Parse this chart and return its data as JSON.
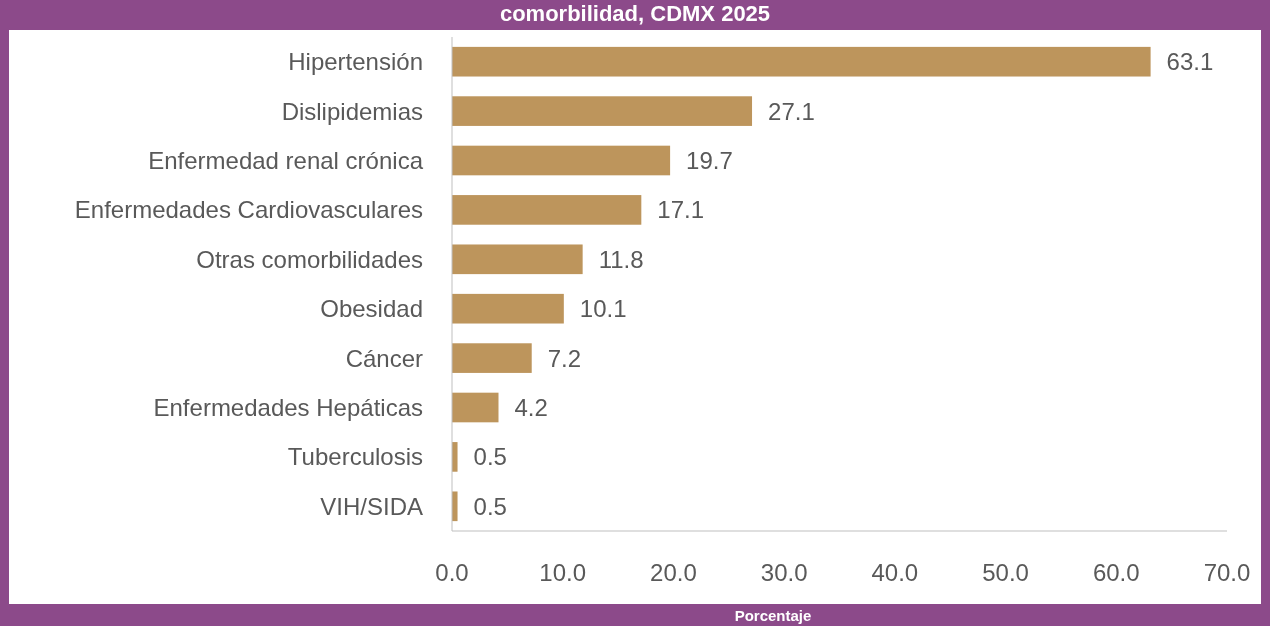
{
  "chart_data": {
    "type": "bar",
    "orientation": "horizontal",
    "title": "comorbilidad, CDMX 2025",
    "xlabel": "Porcentaje",
    "categories": [
      "Hipertensión",
      "Dislipidemias",
      "Enfermedad renal crónica",
      "Enfermedades Cardiovasculares",
      "Otras comorbilidades",
      "Obesidad",
      "Cáncer",
      "Enfermedades Hepáticas",
      "Tuberculosis",
      "VIH/SIDA"
    ],
    "values": [
      63.1,
      27.1,
      19.7,
      17.1,
      11.8,
      10.1,
      7.2,
      4.2,
      0.5,
      0.5
    ],
    "color": "#bd955c",
    "data_labels": true,
    "grid": false,
    "xlim": [
      0,
      70
    ],
    "xticks": [
      {
        "value": 0,
        "label": "0.0"
      },
      {
        "value": 10,
        "label": "10.0"
      },
      {
        "value": 20,
        "label": "20.0"
      },
      {
        "value": 30,
        "label": "30.0"
      },
      {
        "value": 40,
        "label": "40.0"
      },
      {
        "value": 50,
        "label": "50.0"
      },
      {
        "value": 60,
        "label": "60.0"
      },
      {
        "value": 70,
        "label": "70.0"
      }
    ]
  }
}
